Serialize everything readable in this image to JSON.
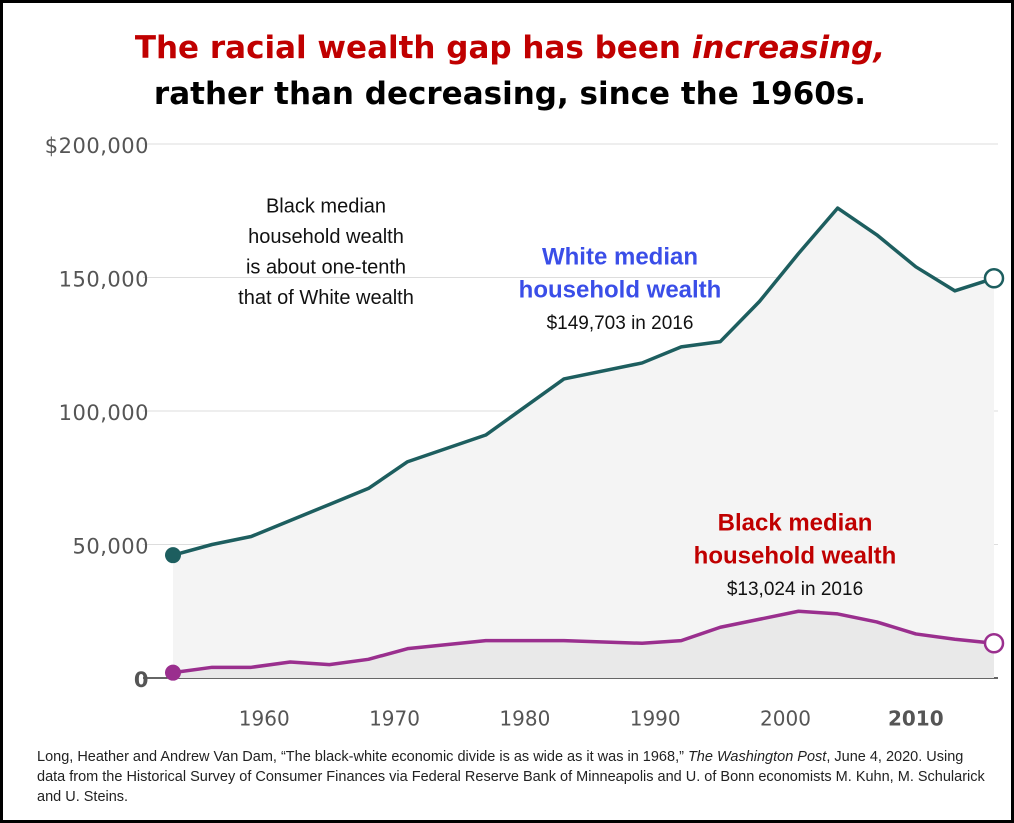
{
  "chart_data": {
    "type": "line",
    "title": {
      "part1": "The racial wealth gap has been ",
      "emphasis": "increasing,",
      "line2": "rather than decreasing, since the 1960s."
    },
    "x": [
      1953,
      1956,
      1959,
      1962,
      1965,
      1968,
      1971,
      1977,
      1983,
      1989,
      1992,
      1995,
      1998,
      2001,
      2004,
      2007,
      2010,
      2013,
      2016
    ],
    "series": [
      {
        "name": "White median household wealth",
        "color": "#1d5e5f",
        "label_color": "#3a4ee8",
        "values": [
          46000,
          50000,
          53000,
          59000,
          65000,
          71000,
          81000,
          91000,
          112000,
          118000,
          124000,
          126000,
          141000,
          159000,
          176000,
          166000,
          154000,
          145000,
          149703
        ],
        "label_lines": [
          "White median",
          "household wealth"
        ],
        "note": "$149,703 in 2016"
      },
      {
        "name": "Black median household wealth",
        "color": "#9a2f8e",
        "label_color": "#c00000",
        "values": [
          2000,
          4000,
          4000,
          6000,
          5000,
          7000,
          11000,
          14000,
          14000,
          13000,
          14000,
          19000,
          22000,
          25000,
          24000,
          21000,
          16500,
          14500,
          13024
        ],
        "label_lines": [
          "Black median",
          "household wealth"
        ],
        "note": "$13,024 in 2016"
      }
    ],
    "xlim": [
      1953,
      2016
    ],
    "xticks": [
      1960,
      1970,
      1980,
      1990,
      2000,
      2010
    ],
    "highlight_xtick": 2010,
    "ylim": [
      0,
      200000
    ],
    "yticks": [
      0,
      {
        "value": 50000,
        "label": "50,000"
      },
      {
        "value": 100000,
        "label": "100,000"
      },
      {
        "value": 150000,
        "label": "150,000"
      },
      {
        "value": 200000,
        "label": "$200,000"
      }
    ],
    "grid": true,
    "annotation": [
      "Black median",
      "household wealth",
      "is about one-tenth",
      "that of White wealth"
    ],
    "source": {
      "before": "Long, Heather and Andrew Van Dam, “The black-white economic divide is as wide as it was in 1968,” ",
      "italic": "The Washington Post",
      "after": ", June 4, 2020. Using data from the Historical Survey of Consumer Finances via Federal Reserve Bank of Minneapolis and U. of Bonn economists M. Kuhn, M. Schularick and U. Steins."
    }
  }
}
